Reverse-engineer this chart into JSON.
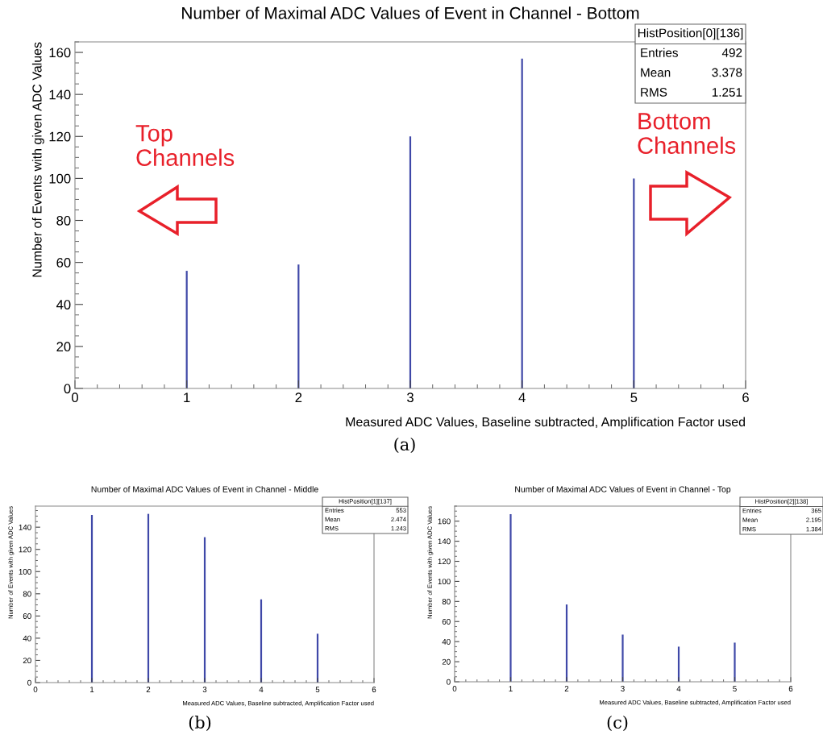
{
  "chart_data": [
    {
      "type": "bar",
      "title": "Number of Maximal ADC Values of Event in Channel - Bottom",
      "xlabel": "Measured ADC Values, Baseline subtracted, Amplification Factor used",
      "ylabel": "Number of Events with given ADC Values",
      "x": [
        1,
        2,
        3,
        4,
        5
      ],
      "values": [
        56,
        59,
        120,
        157,
        100
      ],
      "color": "#3f48a8",
      "xlim": [
        0,
        6
      ],
      "xticks": [
        0,
        1,
        2,
        3,
        4,
        5,
        6
      ],
      "ylim": [
        0,
        165
      ],
      "yticks": [
        0,
        20,
        40,
        60,
        80,
        100,
        120,
        140,
        160
      ],
      "grid": false,
      "legend": false,
      "annotations": [
        "HistPosition[0][136]",
        "Entries",
        "492",
        "Mean",
        "3.378",
        "RMS",
        "1.251",
        "Top\nChannels",
        "Bottom\nChannels",
        "(a)"
      ]
    },
    {
      "type": "bar",
      "title": "Number of Maximal ADC Values of Event in Channel - Middle",
      "xlabel": "Measured ADC Values, Baseline subtracted, Amplification Factor used",
      "ylabel": "Number of Events with given ADC Values",
      "x": [
        1,
        2,
        3,
        4,
        5
      ],
      "values": [
        151,
        152,
        131,
        75,
        44
      ],
      "color": "#3f48a8",
      "xlim": [
        0,
        6
      ],
      "xticks": [
        0,
        1,
        2,
        3,
        4,
        5,
        6
      ],
      "ylim": [
        0,
        159
      ],
      "yticks": [
        0,
        20,
        40,
        60,
        80,
        100,
        120,
        140
      ],
      "grid": false,
      "legend": false,
      "annotations": [
        "HistPosition[1][137]",
        "Entries",
        "553",
        "Mean",
        "2.474",
        "RMS",
        "1.243",
        "(b)"
      ]
    },
    {
      "type": "bar",
      "title": "Number of Maximal ADC Values of Event in Channel - Top",
      "xlabel": "Measured ADC Values, Baseline subtracted, Amplification Factor used",
      "ylabel": "Number of Events with given ADC Values",
      "x": [
        1,
        2,
        3,
        4,
        5
      ],
      "values": [
        167,
        77,
        47,
        35,
        39
      ],
      "color": "#3f48a8",
      "xlim": [
        0,
        6
      ],
      "xticks": [
        0,
        1,
        2,
        3,
        4,
        5,
        6
      ],
      "ylim": [
        0,
        175
      ],
      "yticks": [
        0,
        20,
        40,
        60,
        80,
        100,
        120,
        140,
        160
      ],
      "grid": false,
      "legend": false,
      "annotations": [
        "HistPosition[2][138]",
        "Entries",
        "365",
        "Mean",
        "2.195",
        "RMS",
        "1.384",
        "(c)"
      ]
    }
  ]
}
